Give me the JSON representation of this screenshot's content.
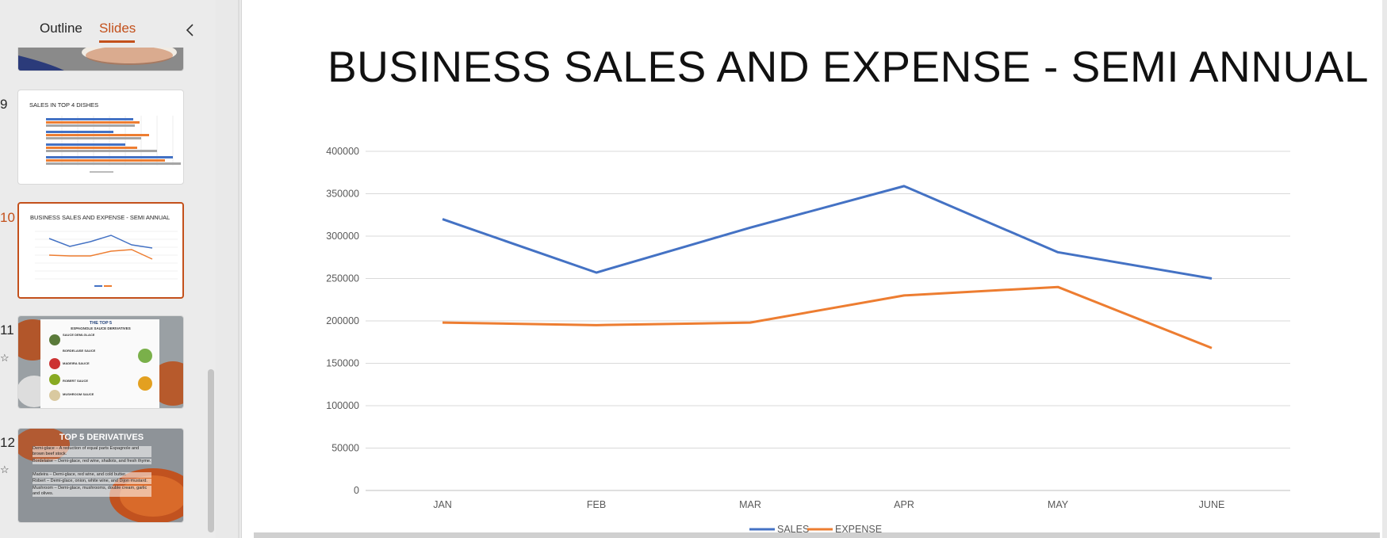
{
  "left_pane": {
    "tabs": [
      {
        "label": "Outline"
      },
      {
        "label": "Slides"
      }
    ],
    "active_tab": "Slides",
    "thumbnails": [
      {
        "number": "9",
        "title": "SALES IN TOP 4 DISHES"
      },
      {
        "number": "10",
        "title": "BUSINESS SALES AND EXPENSE - SEMI ANNUAL"
      },
      {
        "number": "11",
        "title": "THE TOP 5",
        "subtitle": "ESPAGNOLE SAUCE DERIVATIVES",
        "items": [
          "SAUCE DEMI-GLACE",
          "BORDELAISE SAUCE",
          "MADEIRA SAUCE",
          "ROBERT SAUCE",
          "MUSHROOM SAUCE"
        ]
      },
      {
        "number": "12",
        "title": "TOP 5 DERIVATIVES",
        "lines": [
          "Demi-glace – A reduction of equal parts Espagnole and brown beef stock.",
          "Bordelaise – Demi-glace, red wine, shallots, and fresh thyme.",
          "Madeira – Demi-glace, red wine, and cold butter.",
          "Robert – Demi-glace, onion, white wine, and Dijon mustard.",
          "Mushroom – Demi-glace, mushrooms, double cream, garlic and olives."
        ]
      }
    ]
  },
  "slide": {
    "title": "BUSINESS SALES AND EXPENSE - SEMI ANNUAL"
  },
  "chart_data": {
    "type": "line",
    "title": "BUSINESS SALES AND EXPENSE - SEMI ANNUAL",
    "categories": [
      "JAN",
      "FEB",
      "MAR",
      "APR",
      "MAY",
      "JUNE"
    ],
    "series": [
      {
        "name": "SALES",
        "color": "#4472c4",
        "values": [
          320000,
          257000,
          310000,
          359000,
          281000,
          250000
        ]
      },
      {
        "name": "EXPENSE",
        "color": "#ed7d31",
        "values": [
          198000,
          195000,
          198000,
          230000,
          240000,
          168000
        ]
      }
    ],
    "yticks": [
      "0",
      "50000",
      "100000",
      "150000",
      "200000",
      "250000",
      "300000",
      "350000",
      "400000"
    ],
    "ylim": [
      0,
      400000
    ],
    "grid": true,
    "legend": "bottom"
  }
}
